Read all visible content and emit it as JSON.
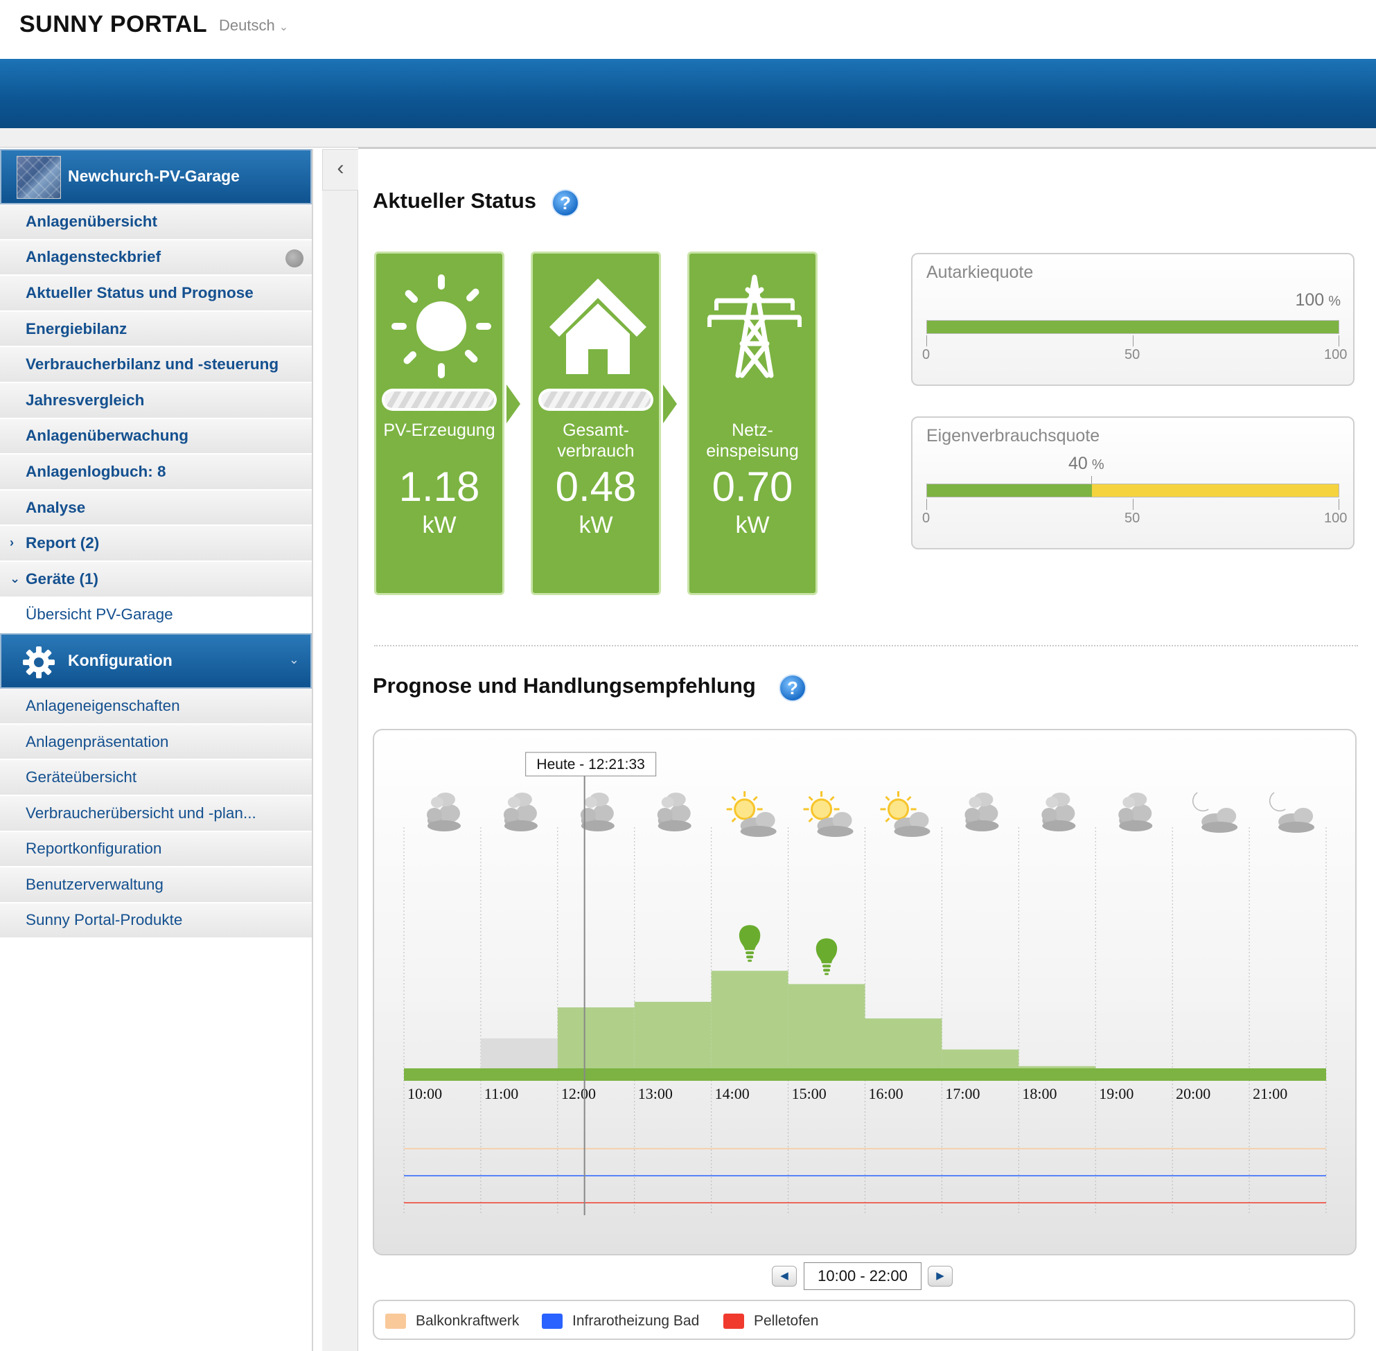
{
  "header": {
    "brand": "SUNNY PORTAL",
    "language": "Deutsch"
  },
  "sidebar": {
    "plant_name": "Newchurch-PV-Garage",
    "items": [
      {
        "label": "Anlagenübersicht"
      },
      {
        "label": "Anlagensteckbrief"
      },
      {
        "label": "Aktueller Status und Prognose"
      },
      {
        "label": "Energiebilanz"
      },
      {
        "label": "Verbraucherbilanz und -steuerung"
      },
      {
        "label": "Jahresvergleich"
      },
      {
        "label": "Anlagenüberwachung"
      },
      {
        "label": "Anlagenlogbuch: 8"
      },
      {
        "label": "Analyse"
      },
      {
        "label": "Report (2)"
      },
      {
        "label": "Geräte (1)"
      },
      {
        "label": "Übersicht PV-Garage"
      }
    ],
    "config_title": "Konfiguration",
    "config_items": [
      {
        "label": "Anlageneigenschaften"
      },
      {
        "label": "Anlagenpräsentation"
      },
      {
        "label": "Geräteübersicht"
      },
      {
        "label": "Verbraucherübersicht und -plan..."
      },
      {
        "label": "Reportkonfiguration"
      },
      {
        "label": "Benutzerverwaltung"
      },
      {
        "label": "Sunny Portal-Produkte"
      }
    ]
  },
  "status": {
    "heading": "Aktueller Status",
    "help": "?",
    "tiles": [
      {
        "name": "PV-Erzeugung",
        "value": "1.18",
        "unit": "kW",
        "icon": "sun-icon"
      },
      {
        "name": "Gesamt-\nverbrauch",
        "value": "0.48",
        "unit": "kW",
        "icon": "house-icon"
      },
      {
        "name": "Netz-\neinspeisung",
        "value": "0.70",
        "unit": "kW",
        "icon": "power-pylon-icon"
      }
    ],
    "autarky": {
      "title": "Autarkiequote",
      "value": "100",
      "unit": "%",
      "fraction": 1.0,
      "scale": [
        "0",
        "50",
        "100"
      ]
    },
    "self_consumption": {
      "title": "Eigenverbrauchsquote",
      "value": "40",
      "unit": "%",
      "fraction": 0.4,
      "scale": [
        "0",
        "50",
        "100"
      ]
    }
  },
  "forecast": {
    "heading": "Prognose und Handlungsempfehlung",
    "help": "?",
    "now_label": "Heute - 12:21:33",
    "range_label": "10:00 - 22:00",
    "prev_icon": "triangle-left-icon",
    "next_icon": "triangle-right-icon",
    "colors": {
      "forecast": "#b0d08a",
      "actual": "#dcdcdc",
      "baseline": "#7cb342"
    },
    "legend": [
      {
        "label": "Balkonkraftwerk",
        "color": "#f9c99a"
      },
      {
        "label": "Infrarotheizung Bad",
        "color": "#2962ff"
      },
      {
        "label": "Pelletofen",
        "color": "#f03a2e"
      }
    ]
  },
  "chart_data": {
    "type": "bar",
    "categories": [
      "10:00",
      "11:00",
      "12:00",
      "13:00",
      "14:00",
      "15:00",
      "16:00",
      "17:00",
      "18:00",
      "19:00",
      "20:00",
      "21:00"
    ],
    "weather": [
      "cloudy",
      "cloudy",
      "cloudy",
      "cloudy",
      "partly-sunny",
      "partly-sunny",
      "partly-sunny",
      "cloudy",
      "cloudy",
      "cloudy",
      "night-cloudy",
      "night-cloudy"
    ],
    "series": [
      {
        "values": [
          0,
          0.27,
          0.55,
          0.6,
          0.88,
          0.76,
          0.45,
          0.17,
          0.02,
          0,
          0,
          0
        ]
      }
    ],
    "recommendations": [
      "14:00",
      "15:00"
    ],
    "now_position_hour": 12.35
  }
}
